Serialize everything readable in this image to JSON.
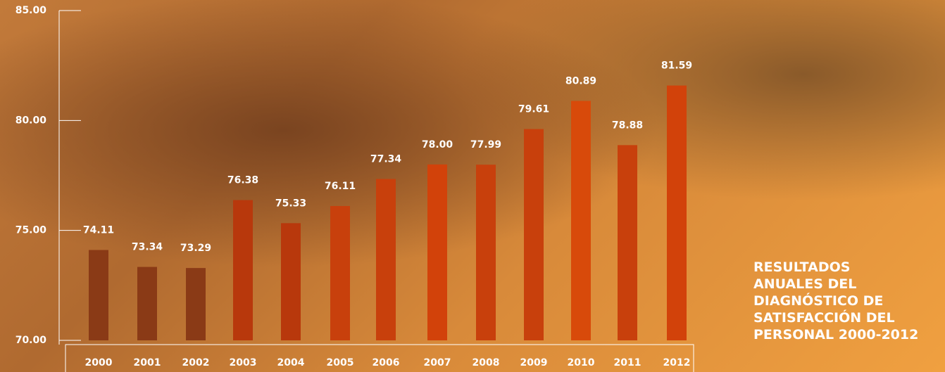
{
  "chart_data": {
    "type": "bar",
    "title": "RESULTADOS ANUALES DEL DIAGNÓSTICO DE SATISFACCIÓN DEL PERSONAL 2000-2012",
    "categories": [
      "2000",
      "2001",
      "2002",
      "2003",
      "2004",
      "2005",
      "2006",
      "2007",
      "2008",
      "2009",
      "2010",
      "2011",
      "2012"
    ],
    "values": [
      74.11,
      73.34,
      73.29,
      76.38,
      75.33,
      76.11,
      77.34,
      78.0,
      77.99,
      79.61,
      80.89,
      78.88,
      81.59
    ],
    "value_labels": [
      "74.11",
      "73.34",
      "73.29",
      "76.38",
      "75.33",
      "76.11",
      "77.34",
      "78.00",
      "77.99",
      "79.61",
      "80.89",
      "78.88",
      "81.59"
    ],
    "colors": [
      "#8a3a16",
      "#8a3a16",
      "#8a3a16",
      "#b8380c",
      "#b8380c",
      "#c8400c",
      "#c8400c",
      "#d2420a",
      "#c8400c",
      "#c8400c",
      "#d84a0a",
      "#c8400c",
      "#d2420a"
    ],
    "ylim": [
      70,
      85
    ],
    "yticks": [
      {
        "value": 70,
        "label": "70.00"
      },
      {
        "value": 75,
        "label": "75.00"
      },
      {
        "value": 80,
        "label": "80.00"
      },
      {
        "value": 85,
        "label": "85.00"
      }
    ]
  }
}
